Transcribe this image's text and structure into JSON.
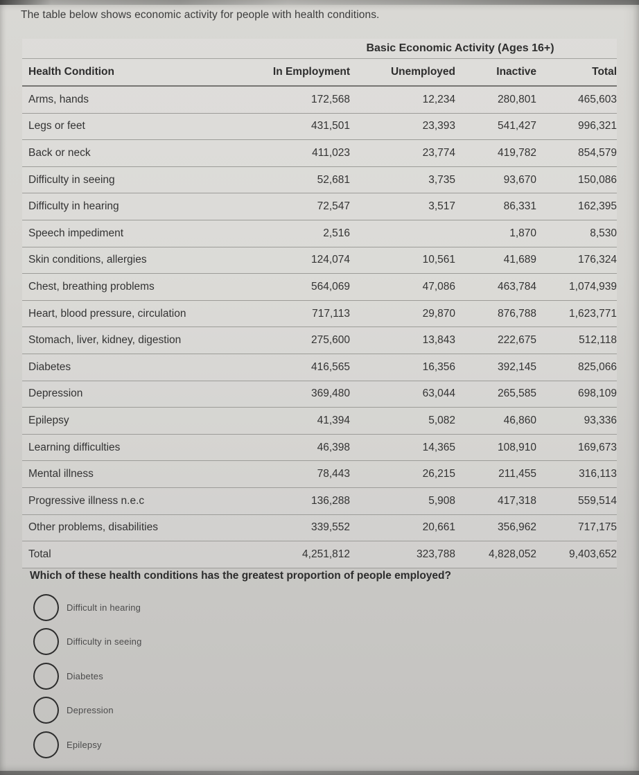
{
  "intro": "The table below shows economic activity for people with health conditions.",
  "table": {
    "title": "Basic Economic Activity (Ages 16+)",
    "columns": [
      "Health Condition",
      "In Employment",
      "Unemployed",
      "Inactive",
      "Total"
    ],
    "rows": [
      [
        "Arms, hands",
        "172,568",
        "12,234",
        "280,801",
        "465,603"
      ],
      [
        "Legs or feet",
        "431,501",
        "23,393",
        "541,427",
        "996,321"
      ],
      [
        "Back or neck",
        "411,023",
        "23,774",
        "419,782",
        "854,579"
      ],
      [
        "Difficulty in seeing",
        "52,681",
        "3,735",
        "93,670",
        "150,086"
      ],
      [
        "Difficulty in hearing",
        "72,547",
        "3,517",
        "86,331",
        "162,395"
      ],
      [
        "Speech impediment",
        "2,516",
        "",
        "1,870",
        "8,530"
      ],
      [
        "Skin conditions, allergies",
        "124,074",
        "10,561",
        "41,689",
        "176,324"
      ],
      [
        "Chest, breathing problems",
        "564,069",
        "47,086",
        "463,784",
        "1,074,939"
      ],
      [
        "Heart, blood pressure, circulation",
        "717,113",
        "29,870",
        "876,788",
        "1,623,771"
      ],
      [
        "Stomach, liver, kidney, digestion",
        "275,600",
        "13,843",
        "222,675",
        "512,118"
      ],
      [
        "Diabetes",
        "416,565",
        "16,356",
        "392,145",
        "825,066"
      ],
      [
        "Depression",
        "369,480",
        "63,044",
        "265,585",
        "698,109"
      ],
      [
        "Epilepsy",
        "41,394",
        "5,082",
        "46,860",
        "93,336"
      ],
      [
        "Learning difficulties",
        "46,398",
        "14,365",
        "108,910",
        "169,673"
      ],
      [
        "Mental illness",
        "78,443",
        "26,215",
        "211,455",
        "316,113"
      ],
      [
        "Progressive illness n.e.c",
        "136,288",
        "5,908",
        "417,318",
        "559,514"
      ],
      [
        "Other problems, disabilities",
        "339,552",
        "20,661",
        "356,962",
        "717,175"
      ],
      [
        "Total",
        "4,251,812",
        "323,788",
        "4,828,052",
        "9,403,652"
      ]
    ]
  },
  "question": {
    "text": "Which of these health conditions has the greatest proportion of people employed?",
    "options": [
      "Difficult in hearing",
      "Difficulty in seeing",
      "Diabetes",
      "Depression",
      "Epilepsy"
    ]
  }
}
